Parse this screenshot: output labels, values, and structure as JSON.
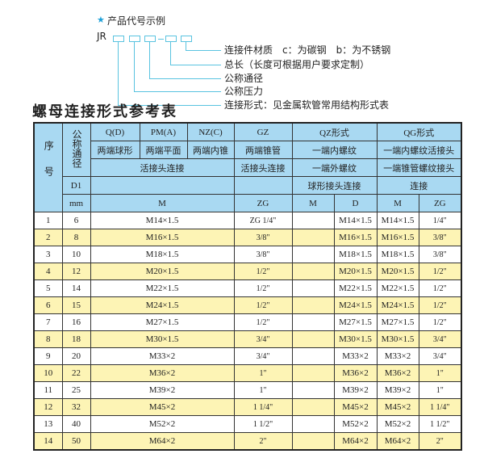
{
  "example": {
    "star_icon": "star",
    "heading": "产品代号示例",
    "prefix": "JR",
    "labels": [
      "连接件材质　c：为碳钢　b：为不锈钢",
      "总长（长度可根据用户要求定制）",
      "公称通径",
      "公称压力",
      "连接形式：见金属软管常用结构形式表"
    ]
  },
  "table_title": "螺母连接形式参考表",
  "header": {
    "seq": "序号",
    "nominal": "公称通径",
    "q": "Q(D)",
    "pm": "PM(A)",
    "nz": "NZ(C)",
    "gz": "GZ",
    "qz": "QZ形式",
    "qg": "QG形式",
    "q_desc": "两端球形",
    "pm_desc": "两端平面",
    "nz_desc": "两端内锥",
    "gz_desc": "两端锥管",
    "qz_desc": "一端内螺纹",
    "qg_desc": "一端内螺纹活接头",
    "live_joint": "活接头连接",
    "gz_joint": "活接头连接",
    "qz_desc2": "一端外螺纹",
    "qg_desc2": "一端锥管螺纹接头",
    "d1": "D1",
    "qz_desc3": "球形接头连接",
    "qg_desc3": "连接",
    "mm": "mm",
    "m": "M",
    "zg": "ZG",
    "qz_m": "M",
    "qz_d": "D",
    "qg_m": "M",
    "qg_zg": "ZG"
  },
  "rows": [
    {
      "no": "1",
      "dn": "6",
      "m": "M14×1.5",
      "gz": "ZG 1/4\"",
      "qz_m": "",
      "qz_d": "M14×1.5",
      "qg_m": "M14×1.5",
      "qg_zg": "1/4\""
    },
    {
      "no": "2",
      "dn": "8",
      "m": "M16×1.5",
      "gz": "3/8\"",
      "qz_m": "",
      "qz_d": "M16×1.5",
      "qg_m": "M16×1.5",
      "qg_zg": "3/8\""
    },
    {
      "no": "3",
      "dn": "10",
      "m": "M18×1.5",
      "gz": "3/8\"",
      "qz_m": "",
      "qz_d": "M18×1.5",
      "qg_m": "M18×1.5",
      "qg_zg": "3/8\""
    },
    {
      "no": "4",
      "dn": "12",
      "m": "M20×1.5",
      "gz": "1/2\"",
      "qz_m": "",
      "qz_d": "M20×1.5",
      "qg_m": "M20×1.5",
      "qg_zg": "1/2\""
    },
    {
      "no": "5",
      "dn": "14",
      "m": "M22×1.5",
      "gz": "1/2\"",
      "qz_m": "",
      "qz_d": "M22×1.5",
      "qg_m": "M22×1.5",
      "qg_zg": "1/2\""
    },
    {
      "no": "6",
      "dn": "15",
      "m": "M24×1.5",
      "gz": "1/2\"",
      "qz_m": "",
      "qz_d": "M24×1.5",
      "qg_m": "M24×1.5",
      "qg_zg": "1/2\""
    },
    {
      "no": "7",
      "dn": "16",
      "m": "M27×1.5",
      "gz": "1/2\"",
      "qz_m": "",
      "qz_d": "M27×1.5",
      "qg_m": "M27×1.5",
      "qg_zg": "1/2\""
    },
    {
      "no": "8",
      "dn": "18",
      "m": "M30×1.5",
      "gz": "3/4\"",
      "qz_m": "",
      "qz_d": "M30×1.5",
      "qg_m": "M30×1.5",
      "qg_zg": "3/4\""
    },
    {
      "no": "9",
      "dn": "20",
      "m": "M33×2",
      "gz": "3/4\"",
      "qz_m": "",
      "qz_d": "M33×2",
      "qg_m": "M33×2",
      "qg_zg": "3/4\""
    },
    {
      "no": "10",
      "dn": "22",
      "m": "M36×2",
      "gz": "1\"",
      "qz_m": "",
      "qz_d": "M36×2",
      "qg_m": "M36×2",
      "qg_zg": "1\""
    },
    {
      "no": "11",
      "dn": "25",
      "m": "M39×2",
      "gz": "1\"",
      "qz_m": "",
      "qz_d": "M39×2",
      "qg_m": "M39×2",
      "qg_zg": "1\""
    },
    {
      "no": "12",
      "dn": "32",
      "m": "M45×2",
      "gz": "1 1/4\"",
      "qz_m": "",
      "qz_d": "M45×2",
      "qg_m": "M45×2",
      "qg_zg": "1 1/4\""
    },
    {
      "no": "13",
      "dn": "40",
      "m": "M52×2",
      "gz": "1 1/2\"",
      "qz_m": "",
      "qz_d": "M52×2",
      "qg_m": "M52×2",
      "qg_zg": "1 1/2\""
    },
    {
      "no": "14",
      "dn": "50",
      "m": "M64×2",
      "gz": "2\"",
      "qz_m": "",
      "qz_d": "M64×2",
      "qg_m": "M64×2",
      "qg_zg": "2\""
    }
  ],
  "colors": {
    "header_bg": "#a9d9f2",
    "alt_row_bg": "#fdf4b5",
    "diagram_line": "#59c3e0",
    "star": "#1da0d8"
  }
}
